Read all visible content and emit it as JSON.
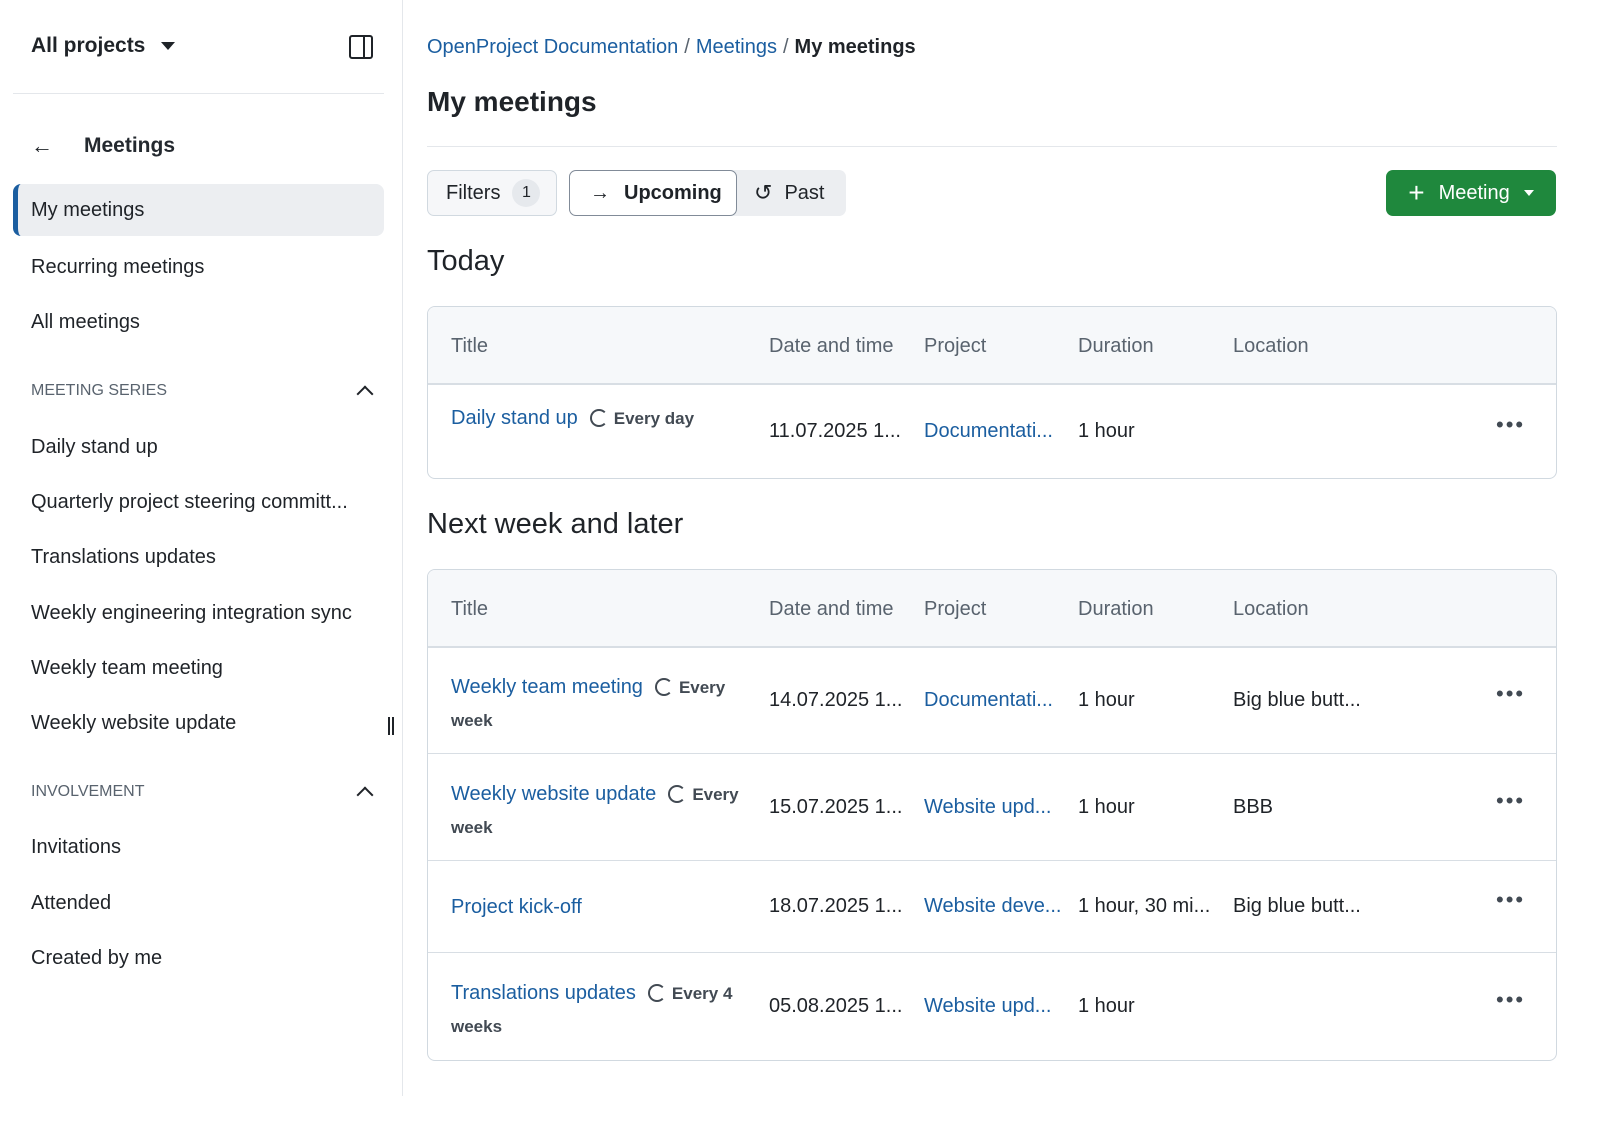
{
  "sidebar": {
    "project_selector": "All projects",
    "back_label": "Meetings",
    "items": [
      "My meetings",
      "Recurring meetings",
      "All meetings"
    ],
    "series_heading": "MEETING SERIES",
    "series": [
      "Daily stand up",
      "Quarterly project steering committ...",
      "Translations updates",
      "Weekly engineering integration sync",
      "Weekly team meeting",
      "Weekly website update"
    ],
    "involvement_heading": "INVOLVEMENT",
    "involvement": [
      "Invitations",
      "Attended",
      "Created by me"
    ]
  },
  "breadcrumb": [
    "OpenProject Documentation",
    "Meetings",
    "My meetings"
  ],
  "title": "My meetings",
  "toolbar": {
    "filters": "Filters",
    "filter_count": "1",
    "upcoming": "Upcoming",
    "past": "Past",
    "new_meeting": "Meeting"
  },
  "colors": {
    "accent": "#1b5ea0",
    "primary_button": "#1f883d"
  },
  "columns": [
    "Title",
    "Date and time",
    "Project",
    "Duration",
    "Location"
  ],
  "sections": [
    {
      "heading": "Today",
      "rows": [
        {
          "title": "Daily stand up",
          "recurrence": "Every day",
          "date": "11.07.2025 1...",
          "project": "Documentati...",
          "duration": "1 hour",
          "location": ""
        }
      ]
    },
    {
      "heading": "Next week and later",
      "rows": [
        {
          "title": "Weekly team meeting",
          "recurrence": "Every week",
          "date": "14.07.2025 1...",
          "project": "Documentati...",
          "duration": "1 hour",
          "location": "Big blue butt..."
        },
        {
          "title": "Weekly website update",
          "recurrence": "Every week",
          "date": "15.07.2025 1...",
          "project": "Website upd...",
          "duration": "1 hour",
          "location": "BBB"
        },
        {
          "title": "Project kick-off",
          "recurrence": "",
          "date": "18.07.2025 1...",
          "project": "Website deve...",
          "duration": "1 hour, 30 mi...",
          "location": "Big blue butt..."
        },
        {
          "title": "Translations updates",
          "recurrence": "Every 4 weeks",
          "date": "05.08.2025 1...",
          "project": "Website upd...",
          "duration": "1 hour",
          "location": ""
        }
      ]
    }
  ]
}
